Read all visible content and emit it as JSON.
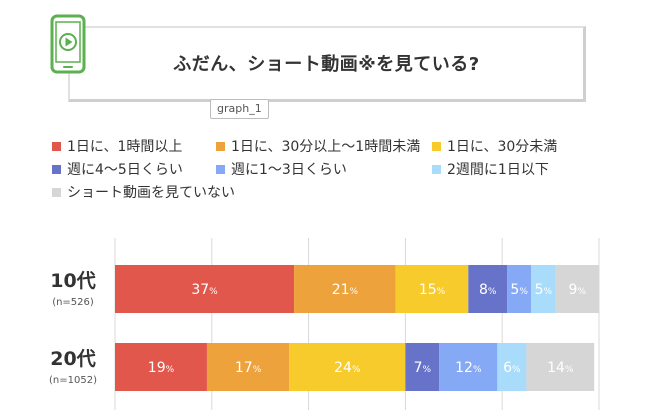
{
  "title": "ふだん、ショート動画※を見ている?",
  "tag": "graph_1",
  "icons": {
    "phone": "phone-play-icon"
  },
  "colors": {
    "icon": "#5bb14f",
    "grid": "#d9d9d9"
  },
  "chart_data": {
    "type": "bar",
    "orientation": "horizontal",
    "stacked": true,
    "unit": "%",
    "categories": [
      "10代",
      "20代"
    ],
    "category_notes": [
      "(n=526)",
      "(n=1052)"
    ],
    "series": [
      {
        "name": "1日に、1時間以上",
        "color": "#e2574c",
        "values": [
          37,
          19
        ]
      },
      {
        "name": "1日に、30分以上〜1時間未満",
        "color": "#eea23b",
        "values": [
          21,
          17
        ]
      },
      {
        "name": "1日に、30分未満",
        "color": "#f7cb2b",
        "values": [
          15,
          24
        ]
      },
      {
        "name": "週に4〜5日くらい",
        "color": "#6673c9",
        "values": [
          8,
          7
        ]
      },
      {
        "name": "週に1〜3日くらい",
        "color": "#85a9f5",
        "values": [
          5,
          12
        ]
      },
      {
        "name": "2週間に1日以下",
        "color": "#a9dbfb",
        "values": [
          5,
          6
        ]
      },
      {
        "name": "ショート動画を見ていない",
        "color": "#d6d6d6",
        "values": [
          9,
          14
        ]
      }
    ],
    "xlim": [
      0,
      100
    ],
    "grid": true,
    "legend_position": "top"
  }
}
